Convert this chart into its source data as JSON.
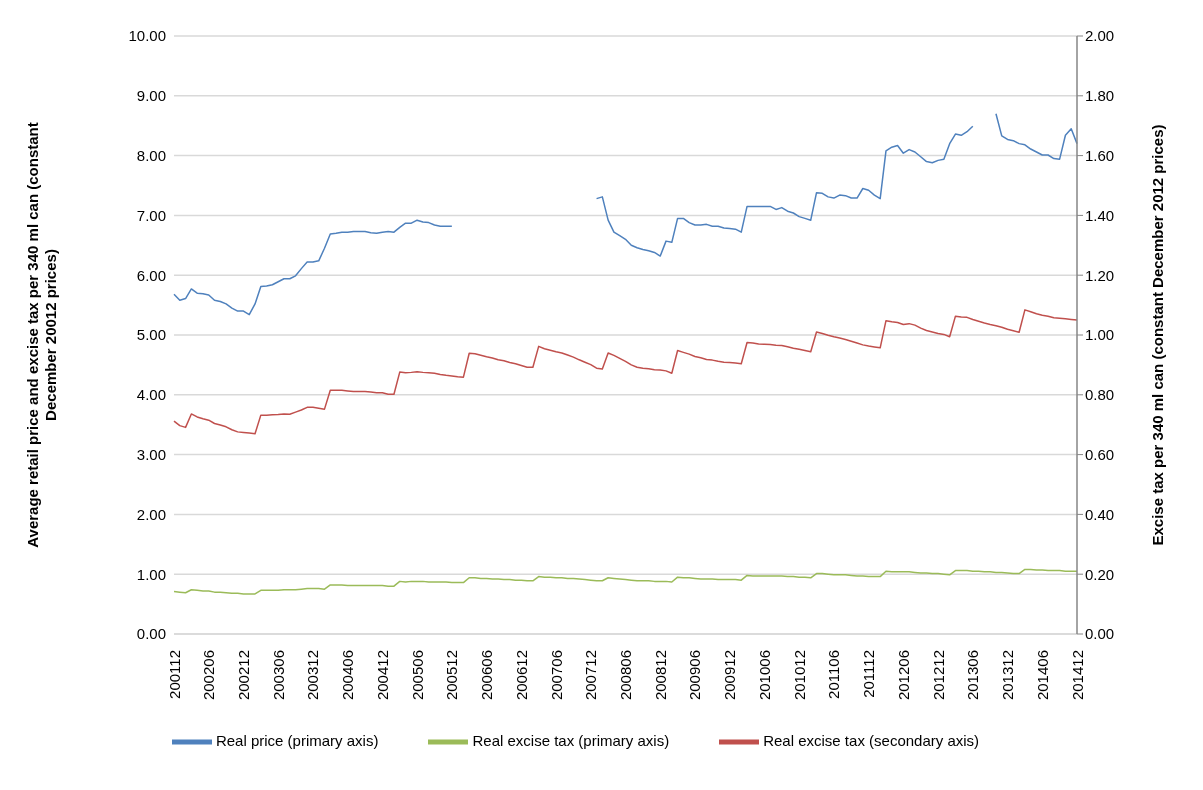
{
  "chart_data": {
    "type": "line",
    "ylabel": "Average retail price and excise tax per 340 ml can (constant December 20012 prices)",
    "y2label": "Excise tax per 340 ml can (constant December 2012 prices)",
    "categories": [
      "200112",
      null,
      null,
      null,
      null,
      null,
      "200206",
      null,
      null,
      null,
      null,
      null,
      "200212",
      null,
      null,
      null,
      null,
      null,
      "200306",
      null,
      null,
      null,
      null,
      null,
      "200312",
      null,
      null,
      null,
      null,
      null,
      "200406",
      null,
      null,
      null,
      null,
      null,
      "200412",
      null,
      null,
      null,
      null,
      null,
      "200506",
      null,
      null,
      null,
      null,
      null,
      "200512",
      null,
      null,
      null,
      null,
      null,
      "200606",
      null,
      null,
      null,
      null,
      null,
      "200612",
      null,
      null,
      null,
      null,
      null,
      "200706",
      null,
      null,
      null,
      null,
      null,
      "200712",
      null,
      null,
      null,
      null,
      null,
      "200806",
      null,
      null,
      null,
      null,
      null,
      "200812",
      null,
      null,
      null,
      null,
      null,
      "200906",
      null,
      null,
      null,
      null,
      null,
      "200912",
      null,
      null,
      null,
      null,
      null,
      "201006",
      null,
      null,
      null,
      null,
      null,
      "201012",
      null,
      null,
      null,
      null,
      null,
      "201106",
      null,
      null,
      null,
      null,
      null,
      "201112",
      null,
      null,
      null,
      null,
      null,
      "201206",
      null,
      null,
      null,
      null,
      null,
      "201212",
      null,
      null,
      null,
      null,
      null,
      "201306",
      null,
      null,
      null,
      null,
      null,
      "201312",
      null,
      null,
      null,
      null,
      null,
      "201406",
      null,
      null,
      null,
      null,
      null,
      "201412"
    ],
    "series": [
      {
        "name": "Real price (primary axis)",
        "color": "#4f81bd",
        "values": [
          5.68,
          5.58,
          5.61,
          5.77,
          5.7,
          5.69,
          5.67,
          5.58,
          5.56,
          5.52,
          5.45,
          5.4,
          5.4,
          5.34,
          5.52,
          5.81,
          5.82,
          5.84,
          5.89,
          5.94,
          5.94,
          5.99,
          6.11,
          6.22,
          6.22,
          6.24,
          6.45,
          6.69,
          6.7,
          6.72,
          6.72,
          6.73,
          6.73,
          6.73,
          6.71,
          6.7,
          6.72,
          6.73,
          6.72,
          6.8,
          6.87,
          6.87,
          6.92,
          6.89,
          6.88,
          6.84,
          6.82,
          6.82,
          6.82,
          null,
          null,
          null,
          null,
          null,
          null,
          null,
          null,
          null,
          null,
          null,
          null,
          null,
          null,
          null,
          null,
          null,
          null,
          null,
          null,
          null,
          null,
          null,
          null,
          7.28,
          7.31,
          6.92,
          6.72,
          6.66,
          6.6,
          6.5,
          6.46,
          6.43,
          6.41,
          6.38,
          6.32,
          6.57,
          6.55,
          6.95,
          6.95,
          6.88,
          6.84,
          6.84,
          6.85,
          6.82,
          6.82,
          6.79,
          6.78,
          6.77,
          6.72,
          7.15,
          7.15,
          7.15,
          7.15,
          7.15,
          7.1,
          7.13,
          7.07,
          7.04,
          6.98,
          6.95,
          6.92,
          7.38,
          7.37,
          7.31,
          7.29,
          7.34,
          7.33,
          7.29,
          7.29,
          7.45,
          7.42,
          7.34,
          7.28,
          8.08,
          8.14,
          8.17,
          8.04,
          8.1,
          8.06,
          7.98,
          7.9,
          7.88,
          7.92,
          7.94,
          8.2,
          8.36,
          8.34,
          8.4,
          8.49,
          null,
          null,
          null,
          8.7,
          8.33,
          8.27,
          8.25,
          8.2,
          8.18,
          8.11,
          8.06,
          8.01,
          8.01,
          7.95,
          7.94,
          8.34,
          8.45,
          8.2
        ]
      },
      {
        "name": "Real excise tax (primary axis)",
        "color": "#9bbb59",
        "values": [
          0.71,
          0.7,
          0.69,
          0.74,
          0.73,
          0.72,
          0.72,
          0.7,
          0.7,
          0.69,
          0.68,
          0.68,
          0.67,
          0.67,
          0.67,
          0.73,
          0.73,
          0.73,
          0.73,
          0.74,
          0.74,
          0.74,
          0.75,
          0.76,
          0.76,
          0.76,
          0.75,
          0.82,
          0.82,
          0.82,
          0.81,
          0.81,
          0.81,
          0.81,
          0.81,
          0.81,
          0.81,
          0.8,
          0.8,
          0.88,
          0.87,
          0.88,
          0.88,
          0.88,
          0.87,
          0.87,
          0.87,
          0.87,
          0.86,
          0.86,
          0.86,
          0.94,
          0.94,
          0.93,
          0.93,
          0.92,
          0.92,
          0.91,
          0.91,
          0.9,
          0.9,
          0.89,
          0.89,
          0.96,
          0.95,
          0.95,
          0.94,
          0.94,
          0.93,
          0.93,
          0.92,
          0.91,
          0.9,
          0.89,
          0.89,
          0.94,
          0.93,
          0.92,
          0.91,
          0.9,
          0.89,
          0.89,
          0.89,
          0.88,
          0.88,
          0.88,
          0.87,
          0.95,
          0.94,
          0.94,
          0.93,
          0.92,
          0.92,
          0.92,
          0.91,
          0.91,
          0.91,
          0.91,
          0.9,
          0.98,
          0.97,
          0.97,
          0.97,
          0.97,
          0.97,
          0.97,
          0.96,
          0.96,
          0.95,
          0.95,
          0.94,
          1.01,
          1.01,
          1.0,
          0.99,
          0.99,
          0.99,
          0.98,
          0.97,
          0.97,
          0.96,
          0.96,
          0.96,
          1.05,
          1.04,
          1.04,
          1.04,
          1.04,
          1.03,
          1.02,
          1.02,
          1.01,
          1.01,
          1.0,
          0.99,
          1.06,
          1.06,
          1.06,
          1.05,
          1.05,
          1.04,
          1.04,
          1.03,
          1.03,
          1.02,
          1.01,
          1.01,
          1.08,
          1.08,
          1.07,
          1.07,
          1.06,
          1.06,
          1.06,
          1.05,
          1.05,
          1.05
        ]
      },
      {
        "name": "Real excise tax (secondary axis)",
        "color": "#c0504d",
        "axis": "y2",
        "values": [
          0.712,
          0.697,
          0.691,
          0.736,
          0.726,
          0.72,
          0.715,
          0.704,
          0.699,
          0.693,
          0.683,
          0.676,
          0.674,
          0.672,
          0.67,
          0.732,
          0.732,
          0.733,
          0.734,
          0.736,
          0.735,
          0.742,
          0.749,
          0.758,
          0.758,
          0.755,
          0.752,
          0.815,
          0.815,
          0.815,
          0.813,
          0.811,
          0.811,
          0.811,
          0.809,
          0.807,
          0.807,
          0.802,
          0.802,
          0.876,
          0.874,
          0.875,
          0.877,
          0.875,
          0.874,
          0.872,
          0.868,
          0.865,
          0.863,
          0.86,
          0.859,
          0.939,
          0.937,
          0.932,
          0.927,
          0.923,
          0.917,
          0.914,
          0.908,
          0.904,
          0.898,
          0.892,
          0.892,
          0.962,
          0.954,
          0.949,
          0.944,
          0.94,
          0.933,
          0.926,
          0.917,
          0.909,
          0.901,
          0.889,
          0.886,
          0.94,
          0.932,
          0.922,
          0.912,
          0.9,
          0.892,
          0.889,
          0.887,
          0.884,
          0.883,
          0.88,
          0.872,
          0.948,
          0.942,
          0.936,
          0.928,
          0.924,
          0.918,
          0.916,
          0.912,
          0.909,
          0.908,
          0.906,
          0.904,
          0.975,
          0.973,
          0.97,
          0.969,
          0.968,
          0.966,
          0.965,
          0.961,
          0.956,
          0.952,
          0.948,
          0.944,
          1.01,
          1.005,
          0.999,
          0.994,
          0.99,
          0.985,
          0.979,
          0.973,
          0.967,
          0.963,
          0.96,
          0.957,
          1.048,
          1.044,
          1.042,
          1.035,
          1.038,
          1.033,
          1.023,
          1.015,
          1.01,
          1.005,
          1.002,
          0.994,
          1.063,
          1.06,
          1.059,
          1.052,
          1.046,
          1.04,
          1.035,
          1.031,
          1.026,
          1.019,
          1.014,
          1.009,
          1.084,
          1.078,
          1.071,
          1.066,
          1.063,
          1.058,
          1.056,
          1.054,
          1.052,
          1.05
        ]
      }
    ],
    "ylim": [
      0,
      10
    ],
    "yticks": [
      {
        "value": 0,
        "label": "0.00"
      },
      {
        "value": 1,
        "label": "1.00"
      },
      {
        "value": 2,
        "label": "2.00"
      },
      {
        "value": 3,
        "label": "3.00"
      },
      {
        "value": 4,
        "label": "4.00"
      },
      {
        "value": 5,
        "label": "5.00"
      },
      {
        "value": 6,
        "label": "6.00"
      },
      {
        "value": 7,
        "label": "7.00"
      },
      {
        "value": 8,
        "label": "8.00"
      },
      {
        "value": 9,
        "label": "9.00"
      },
      {
        "value": 10,
        "label": "10.00"
      }
    ],
    "y2lim": [
      0,
      2
    ],
    "y2ticks": [
      {
        "value": 0,
        "label": "0.00"
      },
      {
        "value": 0.2,
        "label": "0.20"
      },
      {
        "value": 0.4,
        "label": "0.40"
      },
      {
        "value": 0.6,
        "label": "0.60"
      },
      {
        "value": 0.8,
        "label": "0.80"
      },
      {
        "value": 1,
        "label": "1.00"
      },
      {
        "value": 1.2,
        "label": "1.20"
      },
      {
        "value": 1.4,
        "label": "1.40"
      },
      {
        "value": 1.6,
        "label": "1.60"
      },
      {
        "value": 1.8,
        "label": "1.80"
      },
      {
        "value": 2,
        "label": "2.00"
      }
    ],
    "grid": "y",
    "legend": "bottom",
    "marker": "none",
    "line_style": "solid"
  }
}
